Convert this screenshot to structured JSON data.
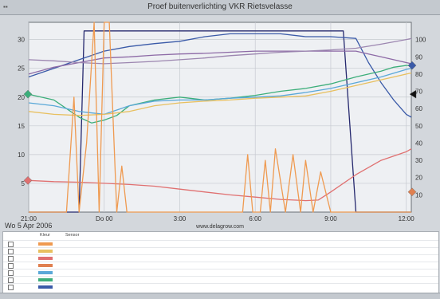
{
  "window": {
    "title": "Proef buitenverlichting VKR Rietsvelasse"
  },
  "date_label": "Wo  5  Apr  2006",
  "legend": {
    "headers": [
      "Kleur",
      "Sensor"
    ],
    "rows": [
      {
        "color": "#ef9a50"
      },
      {
        "color": "#e8c060"
      },
      {
        "color": "#e07070"
      },
      {
        "color": "#e08050"
      },
      {
        "color": "#5aa8d8"
      },
      {
        "color": "#3cae7a"
      },
      {
        "color": "#3a5aa8"
      }
    ]
  },
  "chart_data": {
    "type": "line",
    "title": "Proef buitenverlichting VKR Rietsvelasse",
    "watermark": "www.delagrow.com",
    "grid": true,
    "x_ticks": [
      "21:00",
      "Do  00",
      "3:00",
      "6:00",
      "9:00",
      "12:00"
    ],
    "x_range_hours": [
      0,
      15.2
    ],
    "y_left": {
      "ticks": [
        5,
        10,
        15,
        20,
        25,
        30
      ],
      "range": [
        0,
        33
      ]
    },
    "y_right": {
      "ticks": [
        10,
        20,
        30,
        40,
        50,
        60,
        70,
        80,
        90,
        100
      ],
      "range": [
        0,
        110
      ]
    },
    "series": [
      {
        "color": "#25286e",
        "axis": "left",
        "x": [
          0,
          0.5,
          1,
          1.5,
          2,
          2.2,
          3,
          4,
          5,
          6,
          7,
          8,
          9,
          9.5,
          10,
          10.5,
          11,
          11.5,
          12,
          12.5,
          13,
          13.5,
          14,
          14.5,
          15,
          15.2
        ],
        "y": [
          0,
          0,
          0,
          0,
          0,
          31.5,
          31.5,
          31.5,
          31.5,
          31.5,
          31.5,
          31.5,
          31.5,
          31.5,
          31.5,
          31.5,
          31.5,
          31.5,
          31.5,
          31.5,
          0,
          0,
          0,
          0,
          0,
          0
        ]
      },
      {
        "color": "#3a5aa8",
        "axis": "left",
        "x": [
          0,
          1,
          2,
          3,
          4,
          5,
          6,
          7,
          8,
          9,
          10,
          11,
          12,
          13,
          13.5,
          14,
          14.5,
          15,
          15.2
        ],
        "y": [
          23.5,
          25,
          26.5,
          28,
          28.8,
          29.3,
          29.7,
          30.5,
          31,
          31,
          31,
          30.5,
          30.5,
          30.2,
          26,
          22.5,
          19.5,
          17,
          16.5
        ]
      },
      {
        "color": "#8d6aa6",
        "axis": "left",
        "x": [
          0,
          1,
          2,
          3,
          4,
          5,
          6,
          7,
          8,
          9,
          10,
          11,
          12,
          13,
          13.5,
          14,
          14.5,
          15,
          15.2
        ],
        "y": [
          24,
          25.2,
          26,
          26.8,
          27,
          27.3,
          27.5,
          27.6,
          27.8,
          28,
          28,
          28,
          28,
          28,
          27.5,
          27,
          26.5,
          26,
          25.8
        ]
      },
      {
        "color": "#9c86b0",
        "axis": "left",
        "x": [
          0,
          1,
          2,
          3,
          4,
          5,
          6,
          7,
          8,
          9,
          10,
          11,
          12,
          13,
          14,
          15,
          15.2
        ],
        "y": [
          26.5,
          26.3,
          26,
          25.8,
          26,
          26.2,
          26.5,
          26.8,
          27.2,
          27.5,
          27.8,
          28,
          28.2,
          28.5,
          29.2,
          30,
          30.2
        ]
      },
      {
        "color": "#3cae7a",
        "axis": "left",
        "x": [
          0,
          1,
          2,
          2.5,
          3,
          3.5,
          4,
          5,
          6,
          7,
          8,
          9,
          10,
          11,
          12,
          13,
          14,
          14.5,
          15,
          15.2
        ],
        "y": [
          20.5,
          19.5,
          16.5,
          15.5,
          16,
          16.8,
          18.5,
          19.5,
          20,
          19.5,
          19.8,
          20.3,
          21,
          21.5,
          22.3,
          23.5,
          24.5,
          25.2,
          25.5,
          25.5
        ]
      },
      {
        "color": "#5aa8d8",
        "axis": "left",
        "x": [
          0,
          1,
          2,
          3,
          4,
          5,
          6,
          7,
          8,
          9,
          10,
          11,
          12,
          13,
          14,
          15,
          15.2
        ],
        "y": [
          19,
          18.5,
          17.5,
          17,
          18.5,
          19.3,
          19.5,
          19.5,
          19.8,
          20,
          20.2,
          20.8,
          21.5,
          22.5,
          23.5,
          24.8,
          25
        ]
      },
      {
        "color": "#e8c060",
        "axis": "left",
        "x": [
          0,
          1,
          2,
          3,
          4,
          5,
          6,
          7,
          8,
          9,
          10,
          11,
          12,
          13,
          14,
          15,
          15.2
        ],
        "y": [
          17.5,
          17,
          16.8,
          17,
          17.5,
          18.5,
          19,
          19.3,
          19.5,
          19.8,
          20,
          20.2,
          21,
          22,
          23,
          24,
          24.2
        ]
      },
      {
        "color": "#e07070",
        "axis": "left",
        "x": [
          0,
          1,
          2,
          3,
          4,
          5,
          6,
          7,
          8,
          9,
          10,
          11,
          11.5,
          12,
          13,
          14,
          15,
          15.2
        ],
        "y": [
          5.5,
          5.3,
          5.2,
          5,
          4.8,
          4.5,
          4,
          3.5,
          3,
          2.6,
          2.2,
          2,
          2.1,
          3.5,
          6.5,
          9,
          10.5,
          11
        ]
      },
      {
        "color": "#ef9a50",
        "axis": "left",
        "x": [
          0,
          1,
          1.5,
          1.8,
          2,
          2.3,
          2.6,
          2.8,
          3,
          3.2,
          3.5,
          3.7,
          3.9,
          4.5,
          5,
          6,
          7,
          8,
          8.5,
          8.7,
          8.9,
          9.2,
          9.4,
          9.6,
          9.8,
          10.2,
          10.5,
          10.8,
          11,
          11.3,
          11.6,
          12,
          13,
          14,
          15,
          15.2
        ],
        "y": [
          0,
          0,
          0,
          20,
          0,
          12,
          33,
          0,
          33,
          33,
          0,
          8,
          0,
          0,
          0,
          0,
          0,
          0,
          0,
          10,
          0,
          0,
          9,
          0,
          11,
          0,
          10,
          0,
          9,
          0,
          7,
          0,
          0,
          0,
          0,
          0
        ]
      }
    ],
    "markers": [
      {
        "axis": "left",
        "side": "left",
        "value": 20.5,
        "shape": "diamond",
        "color": "#3cae7a"
      },
      {
        "axis": "left",
        "side": "left",
        "value": 5.5,
        "shape": "diamond",
        "color": "#e07070"
      },
      {
        "axis": "left",
        "side": "right",
        "value": 25.5,
        "shape": "diamond",
        "color": "#3a5aa8"
      },
      {
        "axis": "left",
        "side": "right",
        "value": 20.5,
        "shape": "triangle",
        "color": "#111111"
      },
      {
        "axis": "left",
        "side": "right",
        "value": 3.5,
        "shape": "diamond",
        "color": "#e08050"
      }
    ]
  }
}
